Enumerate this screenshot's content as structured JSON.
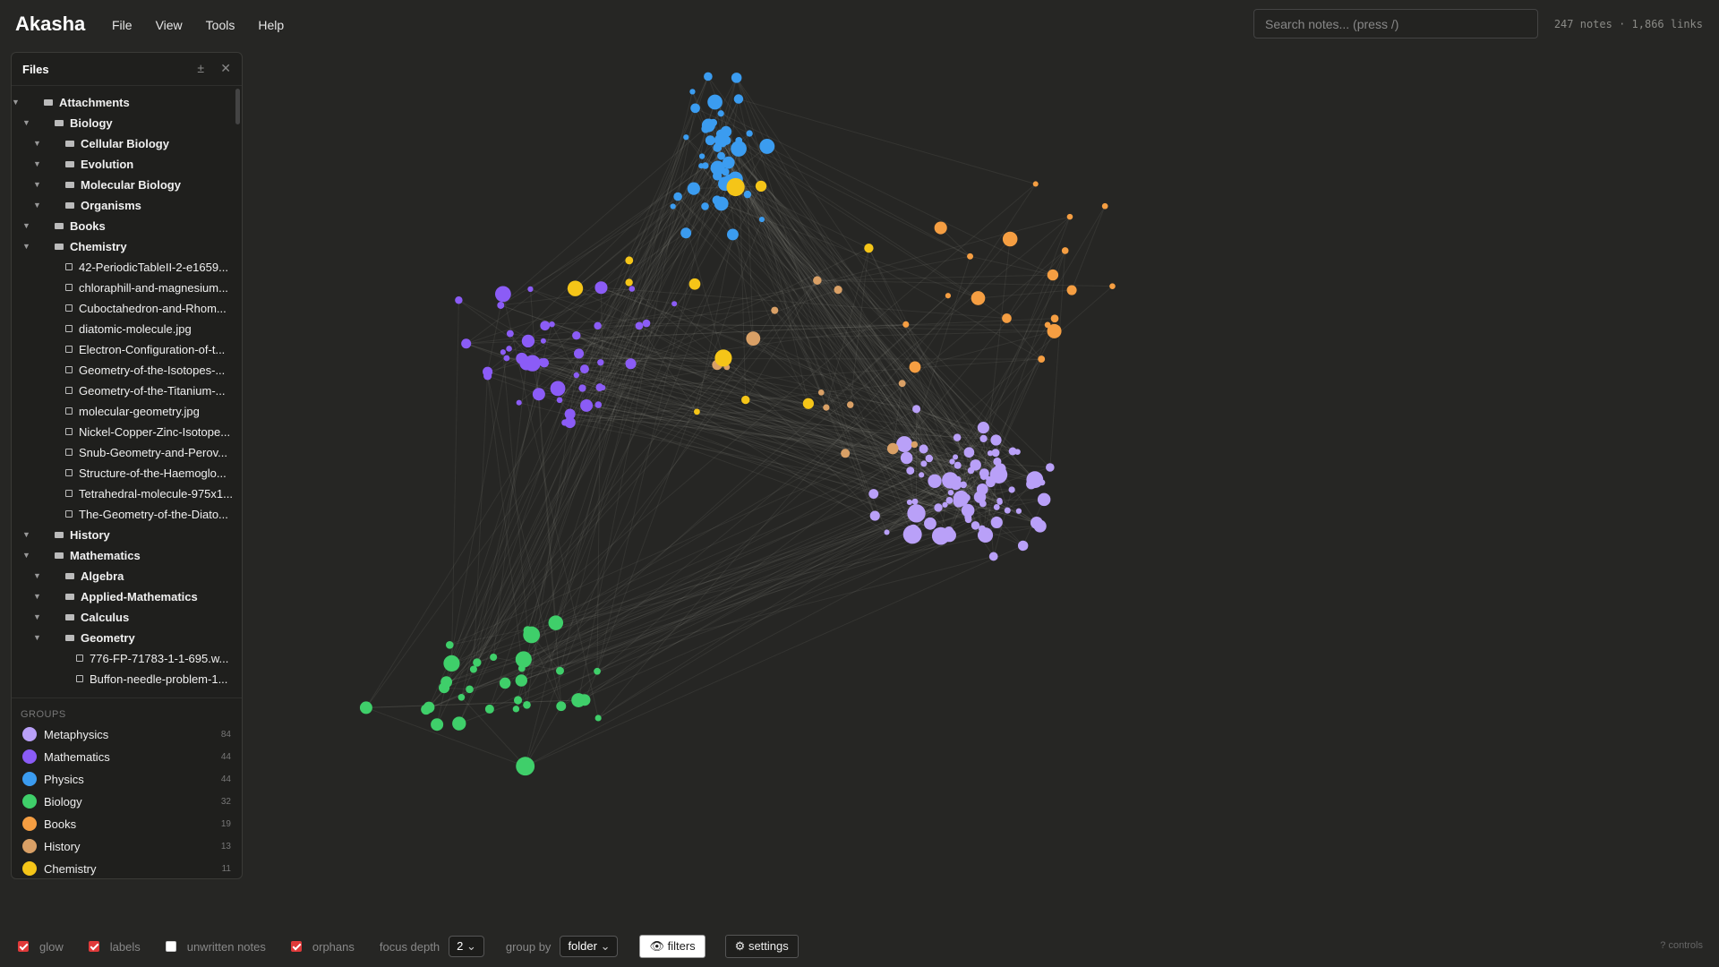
{
  "app": {
    "name": "Akasha"
  },
  "menu": [
    "File",
    "View",
    "Tools",
    "Help"
  ],
  "search": {
    "placeholder": "Search notes... (press /)"
  },
  "stats": "247 notes · 1,866 links",
  "files": {
    "title": "Files",
    "tree": [
      {
        "label": "Attachments",
        "children": [
          {
            "label": "Biology",
            "children": [
              {
                "label": "Cellular Biology",
                "children": []
              },
              {
                "label": "Evolution",
                "children": []
              },
              {
                "label": "Molecular Biology",
                "children": []
              },
              {
                "label": "Organisms",
                "children": []
              }
            ]
          },
          {
            "label": "Books",
            "children": []
          },
          {
            "label": "Chemistry",
            "children": [
              {
                "label": "42-PeriodicTableII-2-e1659..."
              },
              {
                "label": "chloraphill-and-magnesium..."
              },
              {
                "label": "Cuboctahedron-and-Rhom..."
              },
              {
                "label": "diatomic-molecule.jpg"
              },
              {
                "label": "Electron-Configuration-of-t..."
              },
              {
                "label": "Geometry-of-the-Isotopes-..."
              },
              {
                "label": "Geometry-of-the-Titanium-..."
              },
              {
                "label": "molecular-geometry.jpg"
              },
              {
                "label": "Nickel-Copper-Zinc-Isotope..."
              },
              {
                "label": "Snub-Geometry-and-Perov..."
              },
              {
                "label": "Structure-of-the-Haemoglo..."
              },
              {
                "label": "Tetrahedral-molecule-975x1..."
              },
              {
                "label": "The-Geometry-of-the-Diato..."
              }
            ]
          },
          {
            "label": "History",
            "children": []
          },
          {
            "label": "Mathematics",
            "children": [
              {
                "label": "Algebra",
                "children": []
              },
              {
                "label": "Applied-Mathematics",
                "children": []
              },
              {
                "label": "Calculus",
                "children": []
              },
              {
                "label": "Geometry",
                "children": [
                  {
                    "label": "776-FP-71783-1-1-695.w..."
                  },
                  {
                    "label": "Buffon-needle-problem-1..."
                  }
                ]
              }
            ]
          }
        ]
      }
    ]
  },
  "groups": {
    "title": "GROUPS",
    "items": [
      {
        "name": "Metaphysics",
        "count": 84,
        "color": "#b9a0f8"
      },
      {
        "name": "Mathematics",
        "count": 44,
        "color": "#8b5cf6"
      },
      {
        "name": "Physics",
        "count": 44,
        "color": "#3b9cf0"
      },
      {
        "name": "Biology",
        "count": 32,
        "color": "#3fcf6a"
      },
      {
        "name": "Books",
        "count": 19,
        "color": "#f59e42"
      },
      {
        "name": "History",
        "count": 13,
        "color": "#d9a066"
      },
      {
        "name": "Chemistry",
        "count": 11,
        "color": "#f5c518"
      }
    ]
  },
  "controls": {
    "checkboxes": [
      {
        "label": "glow",
        "checked": true
      },
      {
        "label": "labels",
        "checked": true
      },
      {
        "label": "unwritten notes",
        "checked": false
      },
      {
        "label": "orphans",
        "checked": true
      }
    ],
    "focus_depth": {
      "label": "focus depth",
      "value": "2"
    },
    "group_by": {
      "label": "group by",
      "value": "folder"
    },
    "buttons": [
      "filters",
      "settings"
    ],
    "help": "? controls"
  }
}
